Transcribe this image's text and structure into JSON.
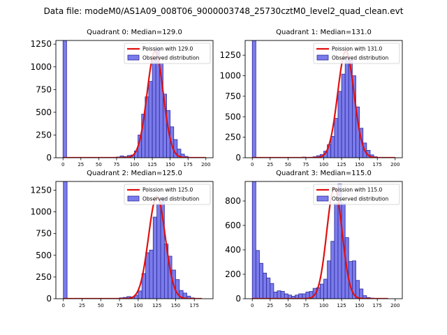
{
  "suptitle": "Data file: modeM0/AS1A09_008T06_9000003748_25730cztM0_level2_quad_clean.evt",
  "colors": {
    "bar_fill": "#7b7bec",
    "bar_edge": "#2a2a9a",
    "fit_line": "#e01010"
  },
  "chart_data": [
    {
      "type": "bar",
      "title": "Quadrant 0: Median=129.0",
      "legend": [
        "Poission with 129.0",
        "Observed distribution"
      ],
      "legend_position": "top-right",
      "xlim": [
        -10,
        210
      ],
      "ylim": [
        0,
        1290
      ],
      "xticks": [
        0,
        25,
        50,
        75,
        100,
        125,
        150,
        175,
        200
      ],
      "yticks": [
        0,
        250,
        500,
        750,
        1000,
        1250
      ],
      "bin_width": 5,
      "bins": [
        [
          0,
          1290
        ],
        [
          70,
          5
        ],
        [
          75,
          8
        ],
        [
          80,
          20
        ],
        [
          85,
          12
        ],
        [
          90,
          25
        ],
        [
          95,
          30
        ],
        [
          100,
          75
        ],
        [
          105,
          250
        ],
        [
          110,
          480
        ],
        [
          115,
          670
        ],
        [
          120,
          840
        ],
        [
          125,
          1080
        ],
        [
          130,
          1200
        ],
        [
          135,
          1040
        ],
        [
          140,
          700
        ],
        [
          145,
          520
        ],
        [
          150,
          340
        ],
        [
          155,
          200
        ],
        [
          160,
          95
        ],
        [
          165,
          40
        ],
        [
          170,
          15
        ],
        [
          175,
          5
        ]
      ],
      "fit": {
        "label": "Poission with 129.0",
        "mean": 129.0,
        "amplitude": 1170,
        "x_range": [
          0,
          200
        ]
      }
    },
    {
      "type": "bar",
      "title": "Quadrant 1: Median=131.0",
      "legend": [
        "Poission with 131.0",
        "Observed distribution"
      ],
      "legend_position": "top-right",
      "xlim": [
        -10,
        210
      ],
      "ylim": [
        0,
        1430
      ],
      "xticks": [
        0,
        25,
        50,
        75,
        100,
        125,
        150,
        175,
        200
      ],
      "yticks": [
        0,
        250,
        500,
        750,
        1000,
        1250
      ],
      "bin_width": 5,
      "bins": [
        [
          0,
          1430
        ],
        [
          70,
          8
        ],
        [
          75,
          5
        ],
        [
          80,
          6
        ],
        [
          85,
          12
        ],
        [
          90,
          25
        ],
        [
          95,
          40
        ],
        [
          100,
          80
        ],
        [
          105,
          160
        ],
        [
          110,
          260
        ],
        [
          115,
          480
        ],
        [
          120,
          810
        ],
        [
          125,
          1020
        ],
        [
          130,
          1230
        ],
        [
          135,
          1190
        ],
        [
          140,
          1000
        ],
        [
          145,
          620
        ],
        [
          150,
          360
        ],
        [
          155,
          180
        ],
        [
          160,
          90
        ],
        [
          165,
          35
        ],
        [
          170,
          12
        ],
        [
          175,
          5
        ]
      ],
      "fit": {
        "label": "Poission with 131.0",
        "mean": 131.0,
        "amplitude": 1300,
        "x_range": [
          0,
          200
        ]
      }
    },
    {
      "type": "bar",
      "title": "Quadrant 2: Median=125.0",
      "legend": [
        "Poission with 125.0",
        "Observed distribution"
      ],
      "legend_position": "top-right",
      "xlim": [
        -10,
        200
      ],
      "ylim": [
        0,
        1350
      ],
      "xticks": [
        0,
        25,
        50,
        75,
        100,
        125,
        150,
        175
      ],
      "yticks": [
        0,
        250,
        500,
        750,
        1000,
        1250
      ],
      "bin_width": 5,
      "bins": [
        [
          0,
          1350
        ],
        [
          70,
          5
        ],
        [
          75,
          10
        ],
        [
          80,
          15
        ],
        [
          85,
          25
        ],
        [
          90,
          20
        ],
        [
          95,
          40
        ],
        [
          100,
          90
        ],
        [
          105,
          290
        ],
        [
          110,
          530
        ],
        [
          115,
          560
        ],
        [
          120,
          940
        ],
        [
          125,
          1090
        ],
        [
          130,
          1160
        ],
        [
          135,
          630
        ],
        [
          140,
          490
        ],
        [
          145,
          330
        ],
        [
          150,
          220
        ],
        [
          155,
          95
        ],
        [
          160,
          65
        ],
        [
          165,
          30
        ],
        [
          170,
          10
        ]
      ],
      "fit": {
        "label": "Poission with 125.0",
        "mean": 125.0,
        "amplitude": 1180,
        "x_range": [
          0,
          185
        ]
      }
    },
    {
      "type": "bar",
      "title": "Quadrant 3: Median=115.0",
      "legend": [
        "Poission with 115.0",
        "Observed distribution"
      ],
      "legend_position": "top-right",
      "xlim": [
        -10,
        210
      ],
      "ylim": [
        0,
        960
      ],
      "xticks": [
        0,
        25,
        50,
        75,
        100,
        125,
        150,
        175,
        200
      ],
      "yticks": [
        0,
        200,
        400,
        600,
        800
      ],
      "bin_width": 5,
      "bins": [
        [
          0,
          960
        ],
        [
          5,
          395
        ],
        [
          10,
          290
        ],
        [
          15,
          210
        ],
        [
          20,
          170
        ],
        [
          25,
          125
        ],
        [
          30,
          55
        ],
        [
          35,
          65
        ],
        [
          40,
          60
        ],
        [
          45,
          40
        ],
        [
          50,
          30
        ],
        [
          55,
          20
        ],
        [
          60,
          30
        ],
        [
          65,
          40
        ],
        [
          70,
          40
        ],
        [
          75,
          55
        ],
        [
          80,
          60
        ],
        [
          85,
          85
        ],
        [
          90,
          90
        ],
        [
          95,
          120
        ],
        [
          100,
          160
        ],
        [
          105,
          310
        ],
        [
          110,
          470
        ],
        [
          115,
          780
        ],
        [
          120,
          940
        ],
        [
          125,
          780
        ],
        [
          130,
          500
        ],
        [
          135,
          305
        ],
        [
          140,
          310
        ],
        [
          145,
          150
        ],
        [
          150,
          80
        ],
        [
          155,
          25
        ],
        [
          160,
          10
        ],
        [
          165,
          5
        ]
      ],
      "fit": {
        "label": "Poission with 115.0",
        "mean": 115.0,
        "amplitude": 910,
        "x_range": [
          0,
          190
        ]
      }
    }
  ]
}
